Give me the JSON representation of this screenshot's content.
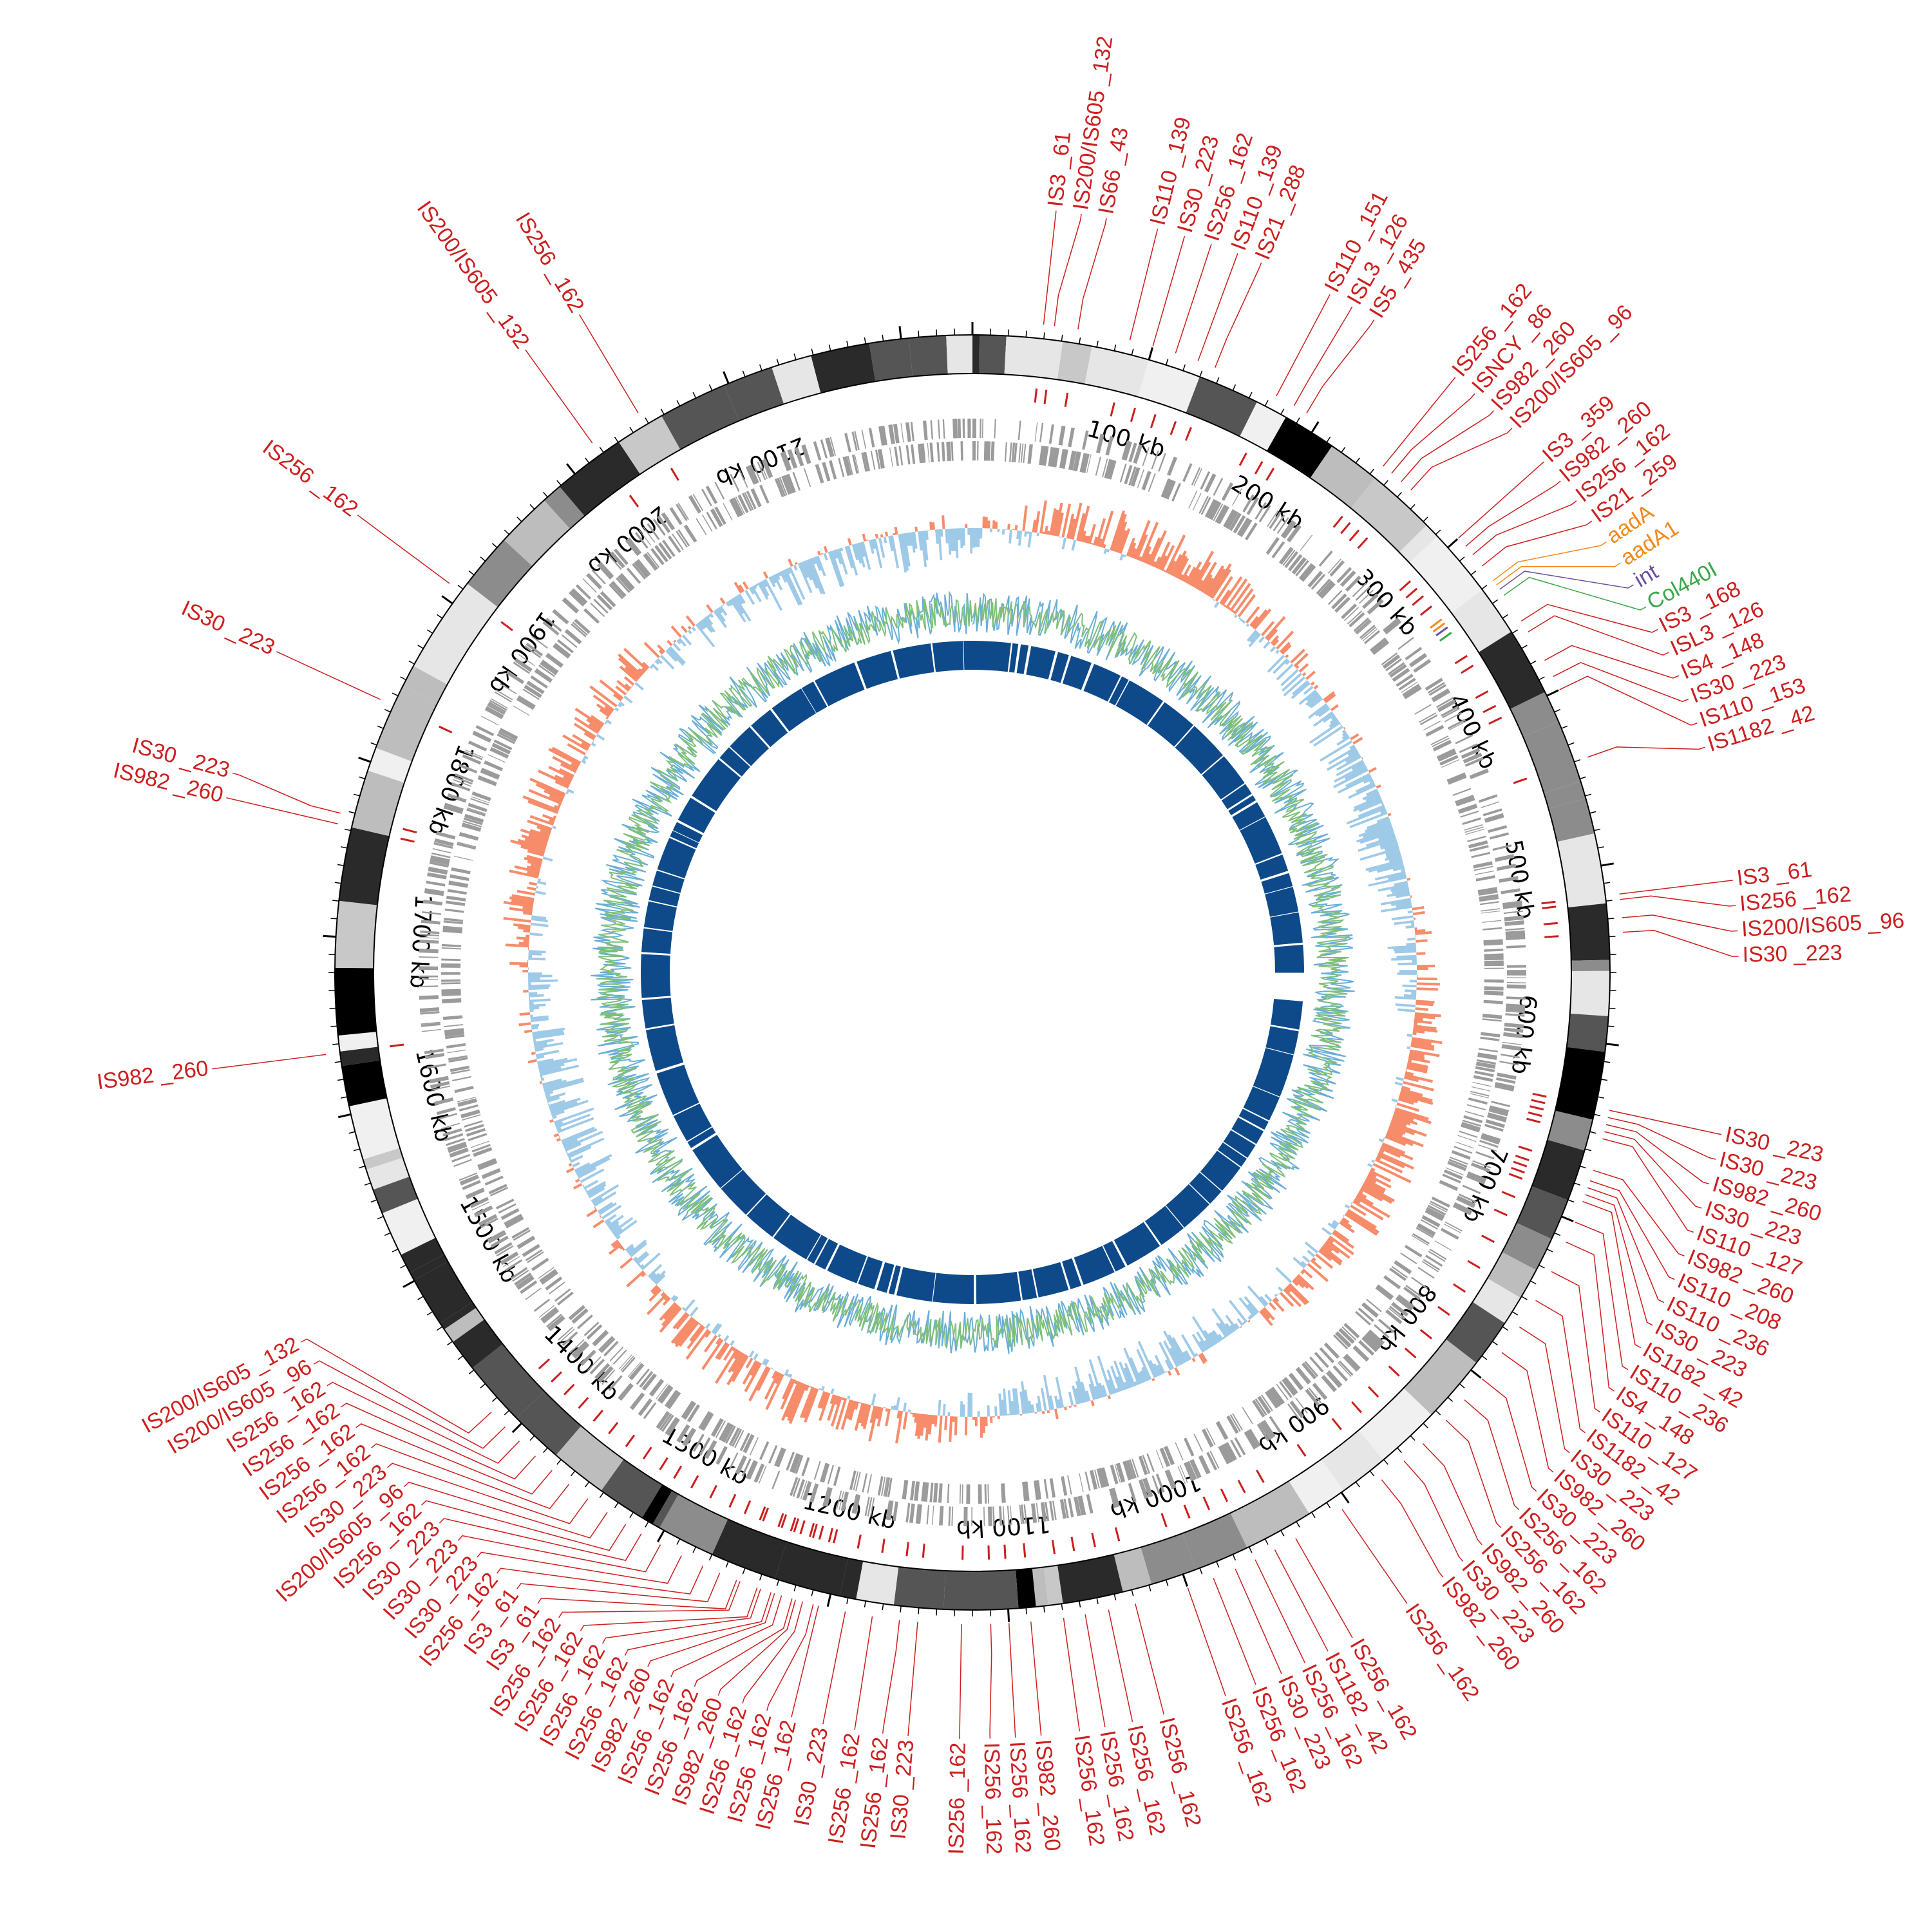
{
  "genome": {
    "total_kb": 2240,
    "scale_ticks_kb": [
      100,
      200,
      300,
      400,
      500,
      600,
      700,
      800,
      900,
      1000,
      1100,
      1200,
      1300,
      1400,
      1500,
      1600,
      1700,
      1800,
      1900,
      2000,
      2100
    ],
    "tick_suffix": "kb"
  },
  "colors": {
    "is_element": "#cc1f1f",
    "aadA": "#f08a1c",
    "int": "#6a4fa3",
    "Col440I": "#3aa64a",
    "gc_skew_positive": "#f78c6b",
    "gc_skew_negative": "#9ecae8",
    "gc_content_a": "#7fbf7b",
    "gc_content_b": "#6aaed6",
    "inner_blocks": "#0e4a8a",
    "genes": "#9b9b9b"
  },
  "features": [
    {
      "label": "IS3 _61",
      "kb": 39,
      "type": "is"
    },
    {
      "label": "IS200/IS605 _132",
      "kb": 45,
      "type": "is"
    },
    {
      "label": "IS66 _43",
      "kb": 58,
      "type": "is"
    },
    {
      "label": "IS110 _139",
      "kb": 87,
      "type": "is"
    },
    {
      "label": "IS30 _223",
      "kb": 100,
      "type": "is"
    },
    {
      "label": "IS256 _162",
      "kb": 113,
      "type": "is"
    },
    {
      "label": "IS110 _139",
      "kb": 126,
      "type": "is"
    },
    {
      "label": "IS21 _288",
      "kb": 136,
      "type": "is"
    },
    {
      "label": "IS110 _151",
      "kb": 173,
      "type": "is"
    },
    {
      "label": "ISL3 _126",
      "kb": 184,
      "type": "is"
    },
    {
      "label": "IS5 _435",
      "kb": 192,
      "type": "is"
    },
    {
      "label": "IS256 _162",
      "kb": 243,
      "type": "is"
    },
    {
      "label": "ISNCY _86",
      "kb": 249,
      "type": "is"
    },
    {
      "label": "IS982 _260",
      "kb": 256,
      "type": "is"
    },
    {
      "label": "IS200/IS605 _96",
      "kb": 263,
      "type": "is"
    },
    {
      "label": "IS3 _359",
      "kb": 300,
      "type": "is"
    },
    {
      "label": "IS982 _260",
      "kb": 306,
      "type": "is"
    },
    {
      "label": "IS256 _162",
      "kb": 312,
      "type": "is"
    },
    {
      "label": "IS21 _259",
      "kb": 320,
      "type": "is"
    },
    {
      "label": "aadA",
      "kb": 330,
      "type": "aadA"
    },
    {
      "label": "aadA1",
      "kb": 333,
      "type": "aadA"
    },
    {
      "label": "int",
      "kb": 336,
      "type": "int"
    },
    {
      "label": "Col440I",
      "kb": 340,
      "type": "Col440I"
    },
    {
      "label": "IS3 _168",
      "kb": 357,
      "type": "is"
    },
    {
      "label": "ISL3 _126",
      "kb": 364,
      "type": "is"
    },
    {
      "label": "IS4 _148",
      "kb": 382,
      "type": "is"
    },
    {
      "label": "IS30 _223",
      "kb": 392,
      "type": "is"
    },
    {
      "label": "IS110 _153",
      "kb": 400,
      "type": "is"
    },
    {
      "label": "IS1182 _42",
      "kb": 440,
      "type": "is"
    },
    {
      "label": "IS3 _61",
      "kb": 517,
      "type": "is"
    },
    {
      "label": "IS256 _162",
      "kb": 520,
      "type": "is"
    },
    {
      "label": "IS200/IS605 _96",
      "kb": 530,
      "type": "is"
    },
    {
      "label": "IS30 _223",
      "kb": 538,
      "type": "is"
    },
    {
      "label": "IS30 _223",
      "kb": 636,
      "type": "is"
    },
    {
      "label": "IS30 _223",
      "kb": 640,
      "type": "is"
    },
    {
      "label": "IS982 _260",
      "kb": 644,
      "type": "is"
    },
    {
      "label": "IS30 _223",
      "kb": 648,
      "type": "is"
    },
    {
      "label": "IS110 _127",
      "kb": 652,
      "type": "is"
    },
    {
      "label": "IS982 _260",
      "kb": 670,
      "type": "is"
    },
    {
      "label": "IS110 _208",
      "kb": 676,
      "type": "is"
    },
    {
      "label": "IS110 _236",
      "kb": 680,
      "type": "is"
    },
    {
      "label": "IS30 _223",
      "kb": 684,
      "type": "is"
    },
    {
      "label": "IS1182 _42",
      "kb": 688,
      "type": "is"
    },
    {
      "label": "IS110 _236",
      "kb": 700,
      "type": "is"
    },
    {
      "label": "IS4 _148",
      "kb": 712,
      "type": "is"
    },
    {
      "label": "IS110 _127",
      "kb": 730,
      "type": "is"
    },
    {
      "label": "IS1182 _42",
      "kb": 748,
      "type": "is"
    },
    {
      "label": "IS30 _223",
      "kb": 765,
      "type": "is"
    },
    {
      "label": "IS982 _260",
      "kb": 782,
      "type": "is"
    },
    {
      "label": "IS30 _223",
      "kb": 800,
      "type": "is"
    },
    {
      "label": "IS256 _162",
      "kb": 815,
      "type": "is"
    },
    {
      "label": "IS256 _162",
      "kb": 830,
      "type": "is"
    },
    {
      "label": "IS982 _260",
      "kb": 848,
      "type": "is"
    },
    {
      "label": "IS30 _223",
      "kb": 862,
      "type": "is"
    },
    {
      "label": "IS982 _260",
      "kb": 878,
      "type": "is"
    },
    {
      "label": "IS256 _162",
      "kb": 905,
      "type": "is"
    },
    {
      "label": "IS256 _162",
      "kb": 935,
      "type": "is"
    },
    {
      "label": "IS1182 _42",
      "kb": 948,
      "type": "is"
    },
    {
      "label": "IS256 _162",
      "kb": 960,
      "type": "is"
    },
    {
      "label": "IS30 _223",
      "kb": 972,
      "type": "is"
    },
    {
      "label": "IS256 _162",
      "kb": 985,
      "type": "is"
    },
    {
      "label": "IS256 _162",
      "kb": 1000,
      "type": "is"
    },
    {
      "label": "IS256 _162",
      "kb": 1030,
      "type": "is"
    },
    {
      "label": "IS256 _162",
      "kb": 1045,
      "type": "is"
    },
    {
      "label": "IS256 _162",
      "kb": 1058,
      "type": "is"
    },
    {
      "label": "IS256 _162",
      "kb": 1070,
      "type": "is"
    },
    {
      "label": "IS982 _260",
      "kb": 1088,
      "type": "is"
    },
    {
      "label": "IS256 _162",
      "kb": 1100,
      "type": "is"
    },
    {
      "label": "IS256 _162",
      "kb": 1110,
      "type": "is"
    },
    {
      "label": "IS256 _162",
      "kb": 1126,
      "type": "is"
    },
    {
      "label": "IS30 _223",
      "kb": 1150,
      "type": "is"
    },
    {
      "label": "IS256 _162",
      "kb": 1160,
      "type": "is"
    },
    {
      "label": "IS256 _162",
      "kb": 1175,
      "type": "is"
    },
    {
      "label": "IS30 _223",
      "kb": 1190,
      "type": "is"
    },
    {
      "label": "IS256 _162",
      "kb": 1205,
      "type": "is"
    },
    {
      "label": "IS982 _260",
      "kb": 1218,
      "type": "is"
    },
    {
      "label": "IS982 _260",
      "kb": 1230,
      "type": "is"
    },
    {
      "label": "IS256 _162",
      "kb": 1240,
      "type": "is"
    },
    {
      "label": "IS3 _61",
      "kb": 1252,
      "type": "is"
    },
    {
      "label": "IS3 _61",
      "kb": 1262,
      "type": "is"
    },
    {
      "label": "IS256 _162",
      "kb": 1272,
      "type": "is"
    },
    {
      "label": "IS30 _223",
      "kb": 1285,
      "type": "is"
    },
    {
      "label": "IS30 _223",
      "kb": 1298,
      "type": "is"
    },
    {
      "label": "IS30 _223",
      "kb": 1310,
      "type": "is"
    },
    {
      "label": "IS256 _162",
      "kb": 1320,
      "type": "is"
    },
    {
      "label": "IS200/IS605 _96",
      "kb": 1332,
      "type": "is"
    },
    {
      "label": "IS30 _223",
      "kb": 1345,
      "type": "is"
    },
    {
      "label": "IS256 _162",
      "kb": 1358,
      "type": "is"
    },
    {
      "label": "IS256 _162",
      "kb": 1370,
      "type": "is"
    },
    {
      "label": "IS256 _162",
      "kb": 1382,
      "type": "is"
    },
    {
      "label": "IS256 _162",
      "kb": 1394,
      "type": "is"
    },
    {
      "label": "IS200/IS605 _96",
      "kb": 1405,
      "type": "is"
    },
    {
      "label": "IS200/IS605 _132",
      "kb": 1416,
      "type": "is"
    },
    {
      "label": "IS256 _162",
      "kb": 1250,
      "type": "is"
    },
    {
      "label": "IS256 _162",
      "kb": 1238,
      "type": "is"
    },
    {
      "label": "IS256 _162",
      "kb": 1232,
      "type": "is"
    },
    {
      "label": "IS256 _162",
      "kb": 1226,
      "type": "is"
    },
    {
      "label": "IS256 _162",
      "kb": 1220,
      "type": "is"
    },
    {
      "label": "IS256 _162",
      "kb": 1214,
      "type": "is"
    },
    {
      "label": "IS256 _162",
      "kb": 1208,
      "type": "is"
    },
    {
      "label": "IS982 _260",
      "kb": 1635,
      "type": "is"
    },
    {
      "label": "IS982 _260",
      "kb": 1762,
      "type": "is"
    },
    {
      "label": "IS30 _223",
      "kb": 1768,
      "type": "is"
    },
    {
      "label": "IS30 _223",
      "kb": 1834,
      "type": "is"
    },
    {
      "label": "IS256 _162",
      "kb": 1908,
      "type": "is"
    },
    {
      "label": "IS200/IS605 _132",
      "kb": 2018,
      "type": "is"
    },
    {
      "label": "IS256 _162",
      "kb": 2048,
      "type": "is"
    }
  ]
}
